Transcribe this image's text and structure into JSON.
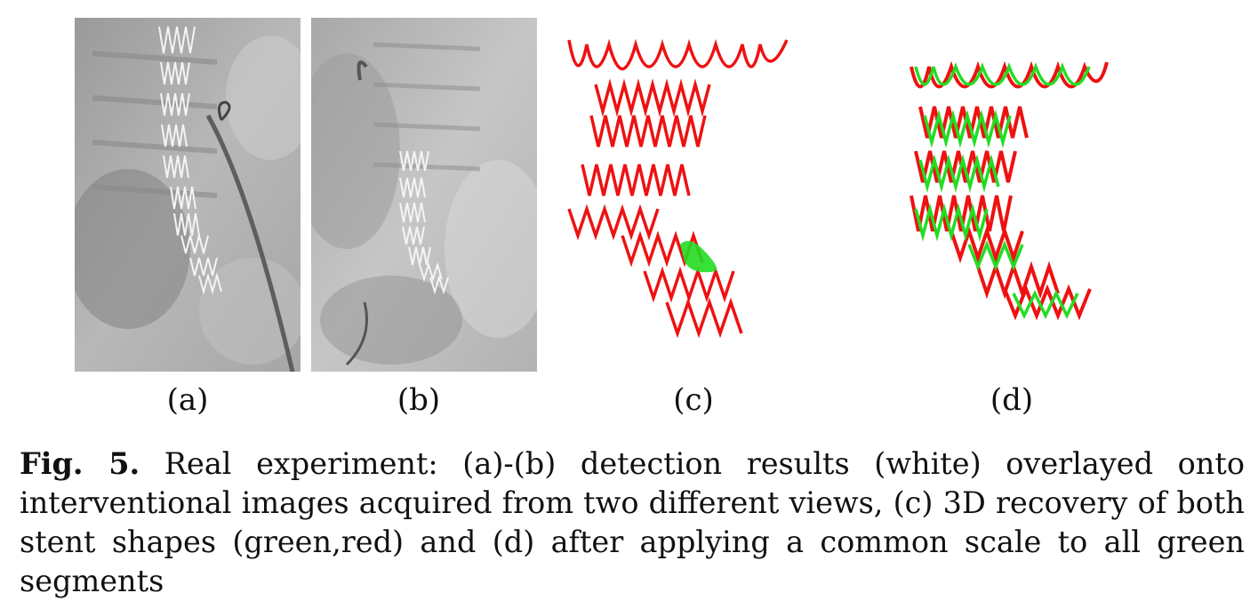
{
  "panels": [
    {
      "label": "(a)",
      "content": "X-ray image with detected stent (white)"
    },
    {
      "label": "(b)",
      "content": "X-ray image with detected stent (white)"
    },
    {
      "label": "(c)",
      "content": "3D recovery of stent shapes"
    },
    {
      "label": "(d)",
      "content": "3D recovery after common scale"
    }
  ],
  "caption": {
    "fig_label": "Fig. 5.",
    "text": "Real experiment: (a)-(b) detection results (white) overlayed onto interventional images acquired from two different views, (c) 3D recovery of both stent shapes (green,red) and (d) after applying a common scale to all green segments"
  },
  "colors": {
    "green": "#22dd22",
    "red": "#ee1111"
  }
}
